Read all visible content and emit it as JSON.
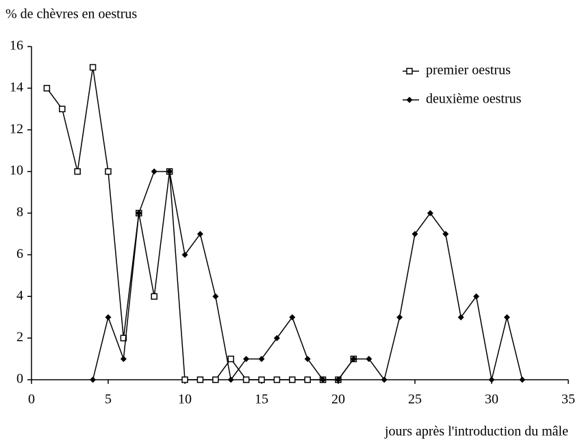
{
  "chart_data": {
    "type": "line",
    "y_label": "% de chèvres en oestrus",
    "x_label": "jours après l'introduction du mâle",
    "x": [
      1,
      2,
      3,
      4,
      5,
      6,
      7,
      8,
      9,
      10,
      11,
      12,
      13,
      14,
      15,
      16,
      17,
      18,
      19,
      20,
      21,
      22,
      23,
      24,
      25,
      26,
      27,
      28,
      29,
      30,
      31,
      32
    ],
    "series": [
      {
        "name": "premier oestrus",
        "color": "#000000",
        "marker": "square",
        "values": [
          14,
          13,
          10,
          15,
          10,
          2,
          8,
          4,
          10,
          0,
          0,
          0,
          1,
          0,
          0,
          0,
          0,
          0,
          0,
          0,
          1,
          null,
          null,
          null,
          null,
          null,
          null,
          null,
          null,
          null,
          null,
          null
        ]
      },
      {
        "name": "deuxième oestrus",
        "color": "#000000",
        "marker": "diamond",
        "values": [
          null,
          null,
          null,
          0,
          3,
          1,
          8,
          10,
          10,
          6,
          7,
          4,
          0,
          1,
          1,
          2,
          3,
          1,
          0,
          0,
          1,
          1,
          0,
          3,
          7,
          8,
          7,
          3,
          4,
          0,
          3,
          0
        ]
      }
    ],
    "xlim": [
      0,
      35
    ],
    "xticks": [
      0,
      5,
      10,
      15,
      20,
      25,
      30,
      35
    ],
    "ylim": [
      0,
      16
    ],
    "yticks": [
      0,
      2,
      4,
      6,
      8,
      10,
      12,
      14,
      16
    ],
    "legend": "top-right"
  }
}
